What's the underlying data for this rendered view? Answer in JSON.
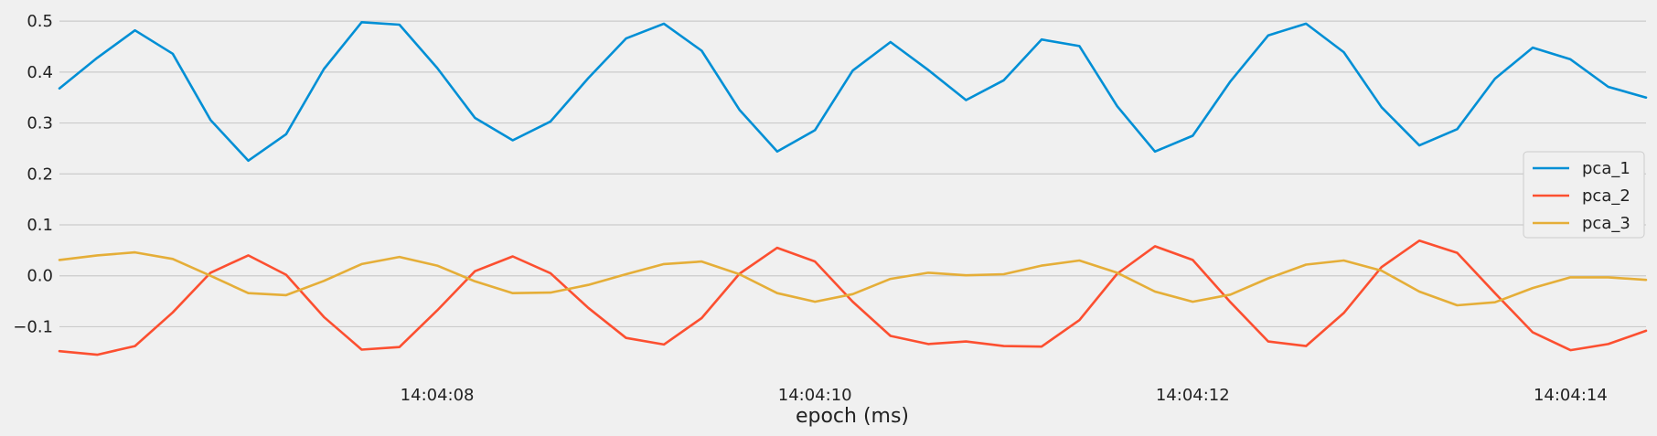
{
  "chart_data": {
    "type": "line",
    "xlabel": "epoch (ms)",
    "ylabel": "",
    "ylim": [
      -0.18,
      0.52
    ],
    "y_ticks": [
      -0.1,
      0.0,
      0.1,
      0.2,
      0.3,
      0.4,
      0.5
    ],
    "y_tick_labels": [
      "−0.1",
      "0.0",
      "0.1",
      "0.2",
      "0.3",
      "0.4",
      "0.5"
    ],
    "x_ticks": [
      {
        "t": 2.0,
        "label": "14:04:08"
      },
      {
        "t": 4.0,
        "label": "14:04:10"
      },
      {
        "t": 6.0,
        "label": "14:04:12"
      },
      {
        "t": 8.0,
        "label": "14:04:14"
      }
    ],
    "grid": "horizontal",
    "legend_position": "right",
    "background_color": "#f0f0f0",
    "x": [
      0.0,
      0.2,
      0.4,
      0.6,
      0.8,
      1.0,
      1.2,
      1.4,
      1.6,
      1.8,
      2.0,
      2.2,
      2.4,
      2.6,
      2.8,
      3.0,
      3.2,
      3.4,
      3.6,
      3.8,
      4.0,
      4.2,
      4.4,
      4.6,
      4.8,
      5.0,
      5.2,
      5.4,
      5.6,
      5.8,
      6.0,
      6.2,
      6.4,
      6.6,
      6.8,
      7.0,
      7.2,
      7.4,
      7.6,
      7.8,
      8.0,
      8.2,
      8.4
    ],
    "series": [
      {
        "name": "pca_1",
        "color": "#008fd5",
        "values": [
          0.368,
          0.428,
          0.482,
          0.436,
          0.306,
          0.226,
          0.278,
          0.406,
          0.498,
          0.493,
          0.408,
          0.31,
          0.266,
          0.303,
          0.388,
          0.466,
          0.495,
          0.442,
          0.326,
          0.244,
          0.286,
          0.403,
          0.459,
          0.404,
          0.345,
          0.384,
          0.464,
          0.451,
          0.333,
          0.244,
          0.275,
          0.382,
          0.472,
          0.495,
          0.439,
          0.331,
          0.256,
          0.288,
          0.387,
          0.448,
          0.425,
          0.371,
          0.35
        ]
      },
      {
        "name": "pca_2",
        "color": "#fc4f30",
        "values": [
          -0.148,
          -0.155,
          -0.138,
          -0.072,
          0.006,
          0.04,
          0.002,
          -0.081,
          -0.145,
          -0.14,
          -0.068,
          0.009,
          0.038,
          0.005,
          -0.063,
          -0.122,
          -0.135,
          -0.083,
          0.004,
          0.055,
          0.028,
          -0.051,
          -0.118,
          -0.134,
          -0.129,
          -0.138,
          -0.139,
          -0.087,
          0.004,
          0.058,
          0.031,
          -0.052,
          -0.129,
          -0.138,
          -0.073,
          0.017,
          0.069,
          0.045,
          -0.034,
          -0.111,
          -0.146,
          -0.134,
          -0.108
        ]
      },
      {
        "name": "pca_3",
        "color": "#e5ae38",
        "values": [
          0.031,
          0.04,
          0.046,
          0.033,
          0.0,
          -0.034,
          -0.038,
          -0.01,
          0.023,
          0.037,
          0.02,
          -0.011,
          -0.034,
          -0.033,
          -0.018,
          0.003,
          0.023,
          0.028,
          0.003,
          -0.034,
          -0.051,
          -0.036,
          -0.006,
          0.006,
          0.001,
          0.003,
          0.02,
          0.03,
          0.006,
          -0.031,
          -0.051,
          -0.037,
          -0.005,
          0.022,
          0.03,
          0.01,
          -0.031,
          -0.058,
          -0.052,
          -0.024,
          -0.003,
          -0.003,
          -0.008
        ]
      }
    ]
  }
}
